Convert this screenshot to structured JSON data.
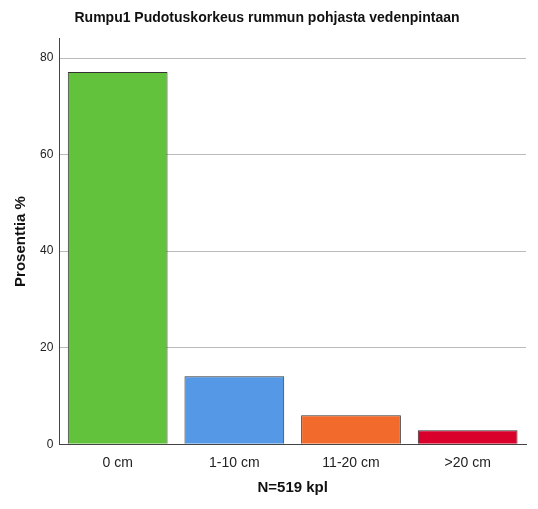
{
  "chart_data": {
    "type": "bar",
    "title": "Rumpu1 Pudotuskorkeus rummun pohjasta vedenpintaan",
    "x_label": "N=519 kpl",
    "y_label": "Prosenttia %",
    "categories": [
      "0 cm",
      "1-10 cm",
      "11-20 cm",
      ">20 cm"
    ],
    "values": [
      77.1,
      14.1,
      6.0,
      2.9
    ],
    "colors": [
      "#62c23c",
      "#5599e6",
      "#f26b2c",
      "#d9002b"
    ],
    "ylim": [
      0,
      84
    ],
    "yticks": [
      0,
      20,
      40,
      60,
      80
    ],
    "grid": true
  }
}
